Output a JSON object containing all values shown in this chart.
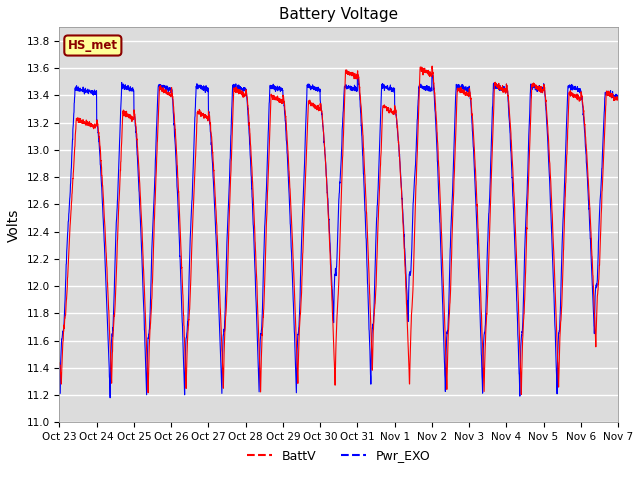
{
  "title": "Battery Voltage",
  "ylabel": "Volts",
  "xlabel": "",
  "ylim": [
    11.0,
    13.9
  ],
  "yticks": [
    11.0,
    11.2,
    11.4,
    11.6,
    11.8,
    12.0,
    12.2,
    12.4,
    12.6,
    12.8,
    13.0,
    13.2,
    13.4,
    13.6,
    13.8
  ],
  "xtick_labels": [
    "Oct 23",
    "Oct 24",
    "Oct 25",
    "Oct 26",
    "Oct 27",
    "Oct 28",
    "Oct 29",
    "Oct 30",
    "Oct 31",
    "Nov 1",
    "Nov 2",
    "Nov 3",
    "Nov 4",
    "Nov 5",
    "Nov 6",
    "Nov 7"
  ],
  "line1_color": "red",
  "line2_color": "blue",
  "line1_label": "BattV",
  "line2_label": "Pwr_EXO",
  "annotation_text": "HS_met",
  "annotation_color": "#8B0000",
  "annotation_bg": "#FFFF99",
  "bg_color": "#DCDCDC",
  "grid_color": "white",
  "title_fontsize": 11,
  "axis_label_fontsize": 10
}
